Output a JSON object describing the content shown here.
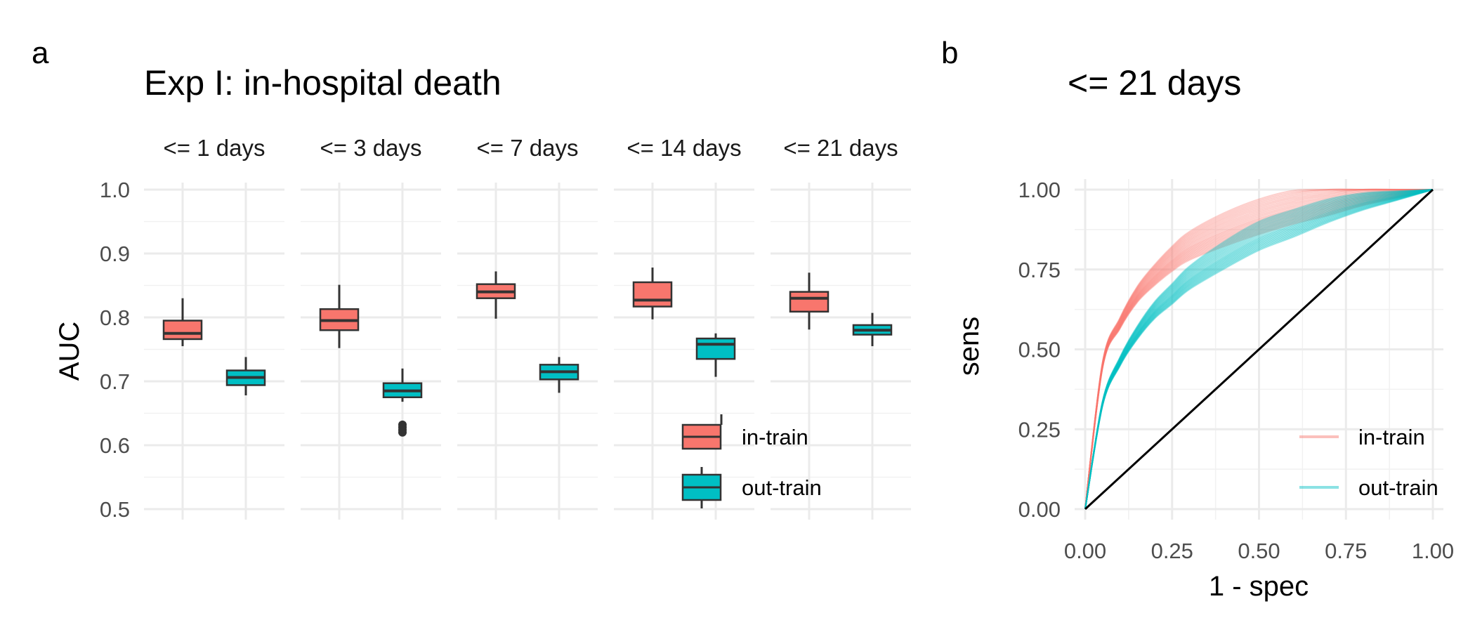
{
  "panels": {
    "a": {
      "letter": "a",
      "title": "Exp I: in-hospital death",
      "ylabel": "AUC",
      "ylim": [
        0.5,
        1.0
      ],
      "yticks": [
        "0.5",
        "0.6",
        "0.7",
        "0.8",
        "0.9",
        "1.0"
      ],
      "legend": [
        {
          "label": "in-train",
          "color": "#F8766D"
        },
        {
          "label": "out-train",
          "color": "#00BFC4"
        }
      ]
    },
    "b": {
      "letter": "b",
      "title": "<= 21 days",
      "xlabel": "1 - spec",
      "ylabel": "sens",
      "xticks": [
        "0.00",
        "0.25",
        "0.50",
        "0.75",
        "1.00"
      ],
      "yticks": [
        "0.00",
        "0.25",
        "0.50",
        "0.75",
        "1.00"
      ],
      "legend": [
        {
          "label": "in-train",
          "color": "#F8766D"
        },
        {
          "label": "out-train",
          "color": "#00BFC4"
        }
      ]
    }
  },
  "chart_data": [
    {
      "type": "box",
      "title": "Exp I: in-hospital death",
      "ylabel": "AUC",
      "ylim": [
        0.5,
        1.0
      ],
      "facets": [
        {
          "label": "<= 1 days",
          "in_train": {
            "min": 0.755,
            "q1": 0.766,
            "median": 0.775,
            "q3": 0.795,
            "max": 0.83,
            "outliers": []
          },
          "out_train": {
            "min": 0.678,
            "q1": 0.694,
            "median": 0.706,
            "q3": 0.717,
            "max": 0.738,
            "outliers": []
          }
        },
        {
          "label": "<= 3 days",
          "in_train": {
            "min": 0.752,
            "q1": 0.78,
            "median": 0.795,
            "q3": 0.813,
            "max": 0.851,
            "outliers": []
          },
          "out_train": {
            "min": 0.668,
            "q1": 0.675,
            "median": 0.685,
            "q3": 0.697,
            "max": 0.72,
            "outliers": [
              0.632,
              0.628,
              0.624,
              0.62
            ]
          }
        },
        {
          "label": "<= 7 days",
          "in_train": {
            "min": 0.798,
            "q1": 0.83,
            "median": 0.84,
            "q3": 0.852,
            "max": 0.872,
            "outliers": []
          },
          "out_train": {
            "min": 0.682,
            "q1": 0.703,
            "median": 0.715,
            "q3": 0.726,
            "max": 0.738,
            "outliers": []
          }
        },
        {
          "label": "<= 14 days",
          "in_train": {
            "min": 0.797,
            "q1": 0.817,
            "median": 0.827,
            "q3": 0.855,
            "max": 0.878,
            "outliers": []
          },
          "out_train": {
            "min": 0.707,
            "q1": 0.735,
            "median": 0.758,
            "q3": 0.767,
            "max": 0.775,
            "outliers": []
          }
        },
        {
          "label": "<= 21 days",
          "in_train": {
            "min": 0.781,
            "q1": 0.809,
            "median": 0.83,
            "q3": 0.84,
            "max": 0.87,
            "outliers": []
          },
          "out_train": {
            "min": 0.755,
            "q1": 0.773,
            "median": 0.78,
            "q3": 0.788,
            "max": 0.807,
            "outliers": []
          }
        }
      ],
      "series": [
        {
          "name": "in-train",
          "color": "#F8766D"
        },
        {
          "name": "out-train",
          "color": "#00BFC4"
        }
      ],
      "legend_position": "bottom-right"
    },
    {
      "type": "line",
      "title": "<= 21 days",
      "xlabel": "1 - spec",
      "ylabel": "sens",
      "xlim": [
        0,
        1
      ],
      "ylim": [
        0,
        1
      ],
      "x": [
        0,
        0.05,
        0.1,
        0.15,
        0.2,
        0.25,
        0.3,
        0.4,
        0.5,
        0.6,
        0.7,
        0.8,
        0.9,
        1.0
      ],
      "series": [
        {
          "name": "in-train",
          "color": "#F8766D",
          "curve_count": 25,
          "y": [
            0,
            0.45,
            0.58,
            0.67,
            0.73,
            0.78,
            0.82,
            0.87,
            0.91,
            0.94,
            0.96,
            0.98,
            0.99,
            1.0
          ],
          "y_band": [
            0.06,
            0.05
          ]
        },
        {
          "name": "out-train",
          "color": "#00BFC4",
          "curve_count": 25,
          "y": [
            0,
            0.33,
            0.46,
            0.55,
            0.62,
            0.67,
            0.72,
            0.79,
            0.85,
            0.89,
            0.93,
            0.96,
            0.98,
            1.0
          ],
          "y_band": [
            0.05,
            0.04
          ]
        },
        {
          "name": "chance",
          "color": "#000000",
          "y": [
            0,
            0.05,
            0.1,
            0.15,
            0.2,
            0.25,
            0.3,
            0.4,
            0.5,
            0.6,
            0.7,
            0.8,
            0.9,
            1.0
          ]
        }
      ],
      "legend_position": "bottom-right"
    }
  ]
}
